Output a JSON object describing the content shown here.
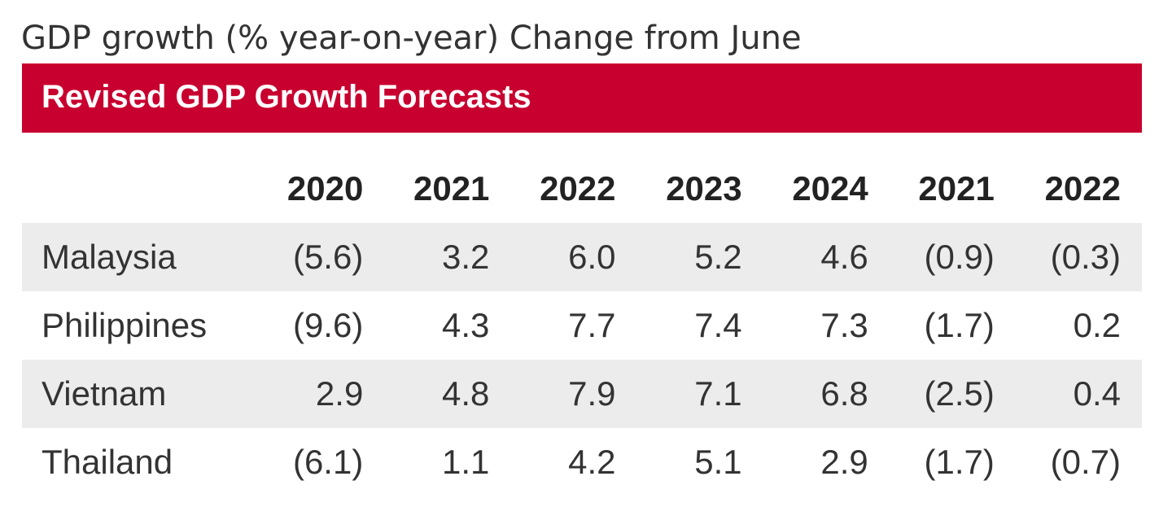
{
  "caption": "GDP growth (% year-on-year) Change from June",
  "banner": {
    "title": "Revised GDP Growth Forecasts",
    "color": "#c8002f"
  },
  "chart_data": {
    "type": "table",
    "title": "Revised GDP Growth Forecasts",
    "columns": [
      "",
      "2020",
      "2021",
      "2022",
      "2023",
      "2024",
      "2021",
      "2022"
    ],
    "rows": [
      {
        "country": "Malaysia",
        "cells": [
          "(5.6)",
          "3.2",
          "6.0",
          "5.2",
          "4.6",
          "(0.9)",
          "(0.3)"
        ]
      },
      {
        "country": "Philippines",
        "cells": [
          "(9.6)",
          "4.3",
          "7.7",
          "7.4",
          "7.3",
          "(1.7)",
          "0.2"
        ]
      },
      {
        "country": "Vietnam",
        "cells": [
          "2.9",
          "4.8",
          "7.9",
          "7.1",
          "6.8",
          "(2.5)",
          "0.4"
        ]
      },
      {
        "country": "Thailand",
        "cells": [
          "(6.1)",
          "1.1",
          "4.2",
          "5.1",
          "2.9",
          "(1.7)",
          "(0.7)"
        ]
      }
    ],
    "row_shading": "#ececec"
  }
}
